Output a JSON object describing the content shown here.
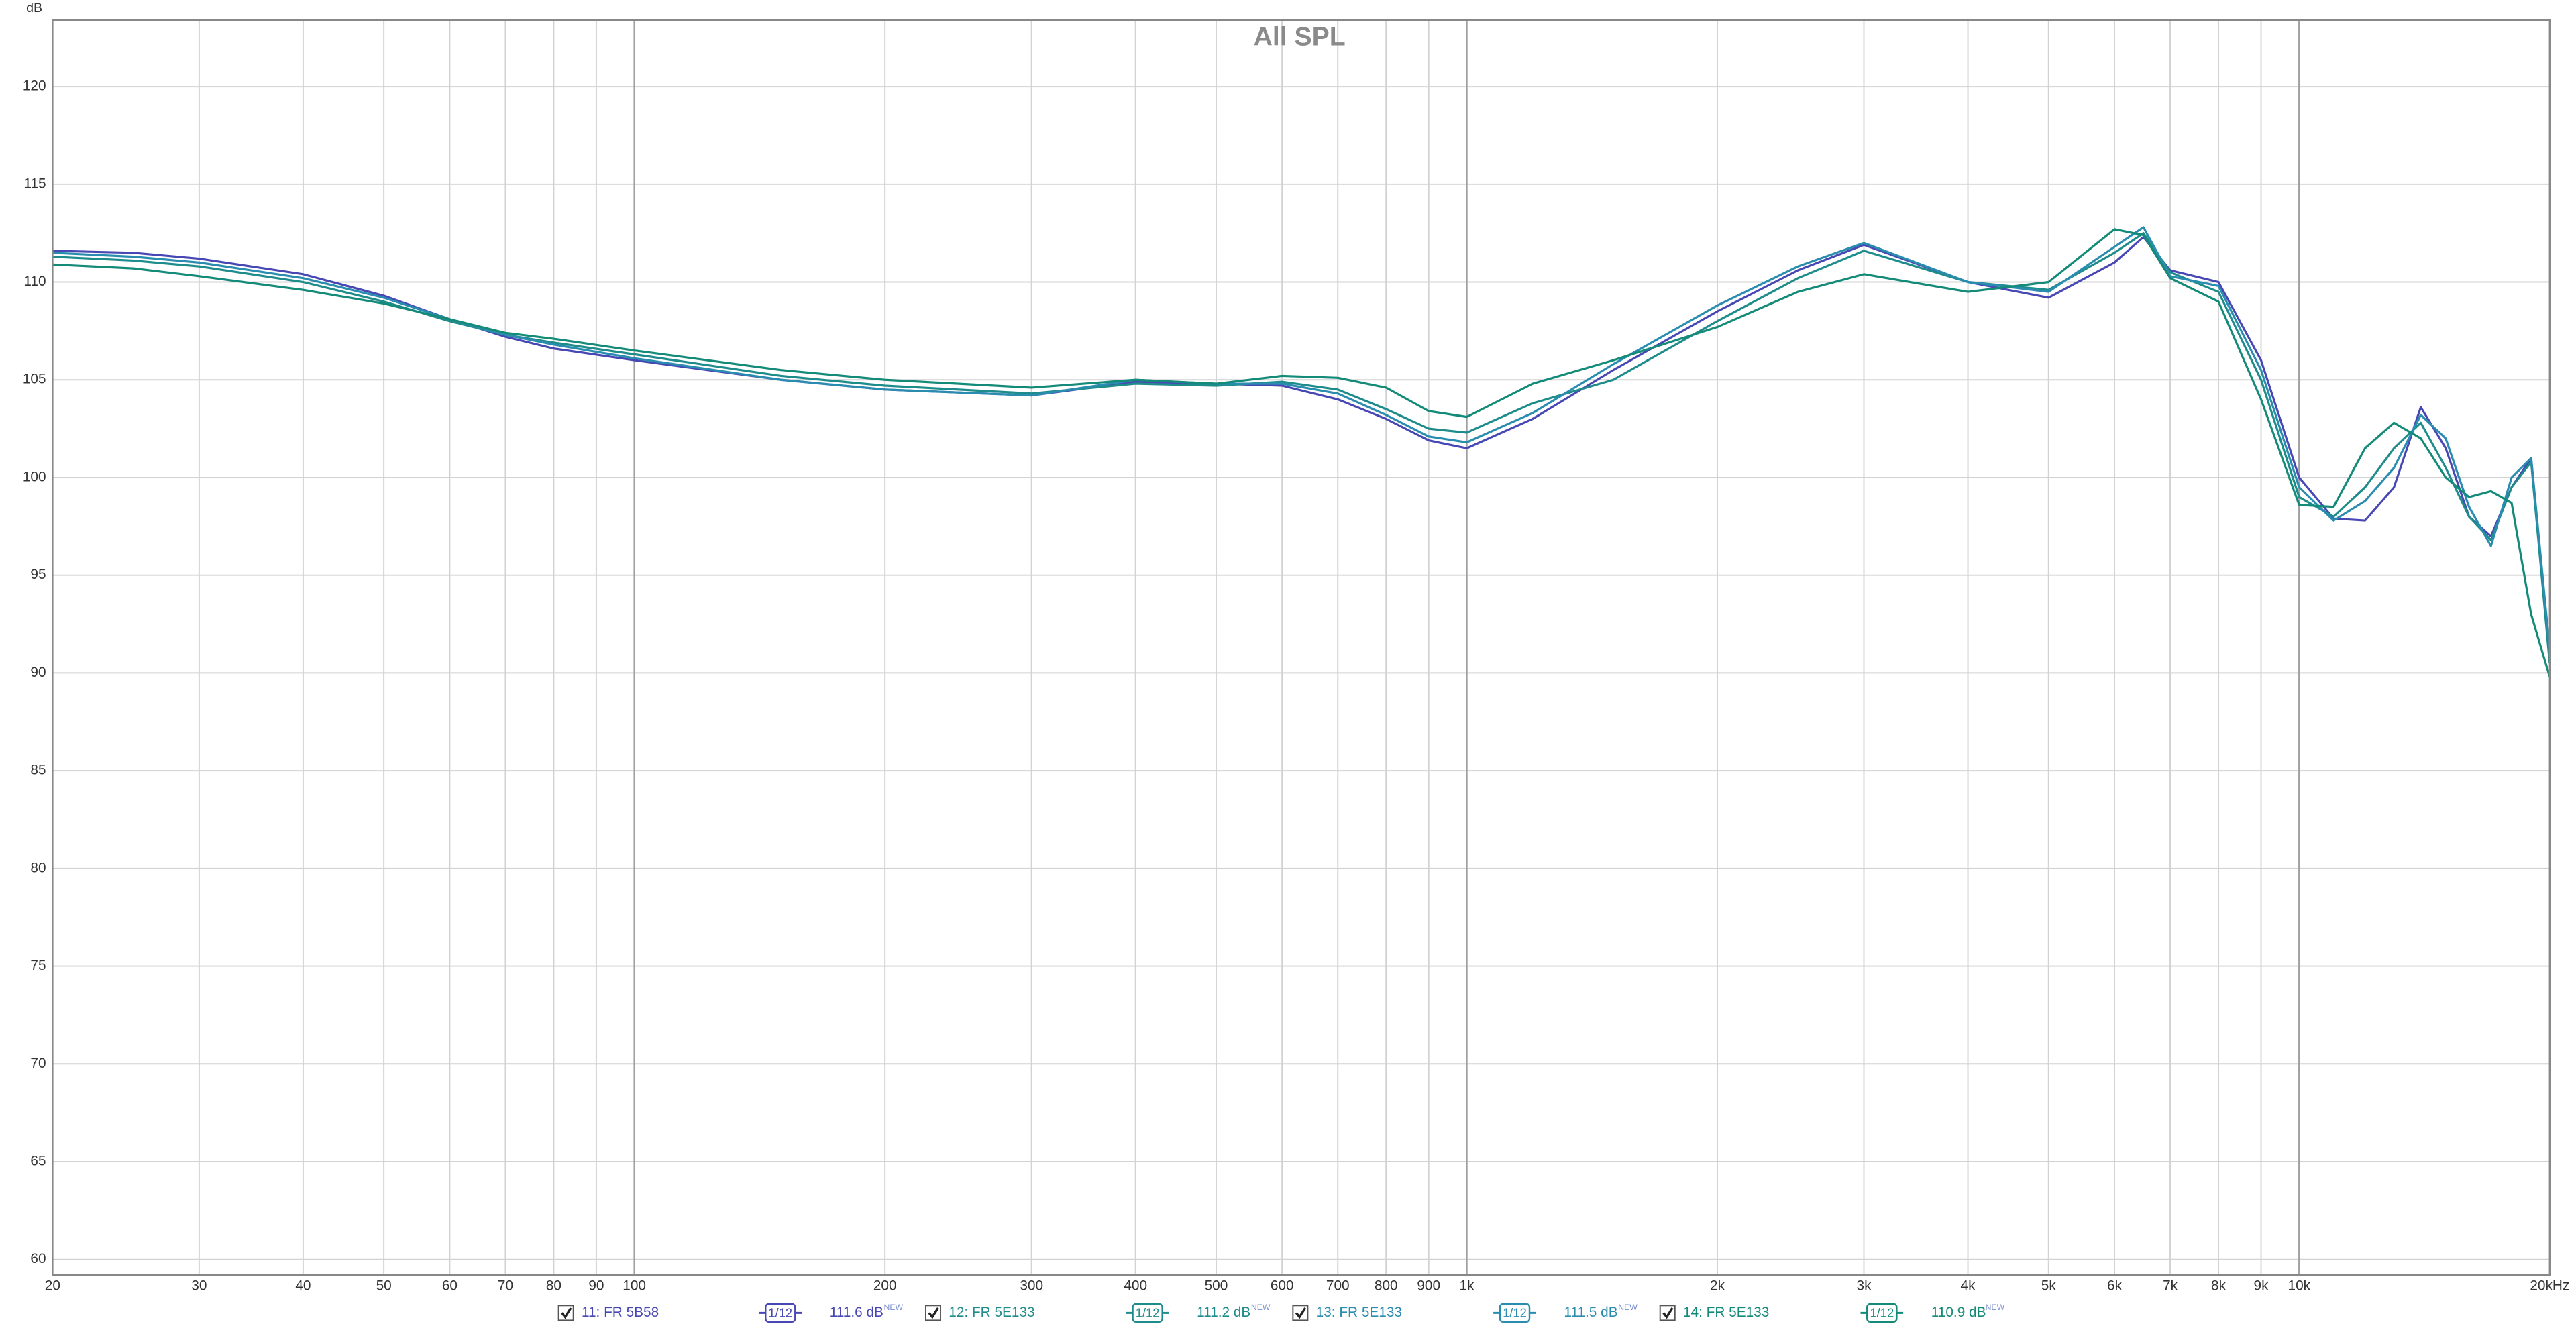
{
  "chart_data": {
    "type": "line",
    "title": "All SPL",
    "y_label": "dB",
    "xscale": "log",
    "grid": true,
    "xlim": [
      20,
      20000
    ],
    "ylim": [
      59.2,
      123.4
    ],
    "yticks": [
      60,
      65,
      70,
      75,
      80,
      85,
      90,
      95,
      100,
      105,
      110,
      115,
      120
    ],
    "xticks": [
      20,
      30,
      40,
      50,
      60,
      70,
      80,
      90,
      100,
      200,
      300,
      400,
      500,
      600,
      700,
      800,
      900,
      {
        "value": 1000,
        "label": "1k"
      },
      {
        "value": 2000,
        "label": "2k"
      },
      {
        "value": 3000,
        "label": "3k"
      },
      {
        "value": 4000,
        "label": "4k"
      },
      {
        "value": 5000,
        "label": "5k"
      },
      {
        "value": 6000,
        "label": "6k"
      },
      {
        "value": 7000,
        "label": "7k"
      },
      {
        "value": 8000,
        "label": "8k"
      },
      {
        "value": 9000,
        "label": "9k"
      },
      {
        "value": 10000,
        "label": "10k"
      },
      {
        "value": 20000,
        "label": "20kHz"
      }
    ],
    "x": [
      20,
      25,
      30,
      40,
      50,
      60,
      70,
      80,
      100,
      150,
      200,
      300,
      400,
      500,
      600,
      700,
      800,
      900,
      1000,
      1200,
      1500,
      2000,
      2500,
      3000,
      4000,
      5000,
      6000,
      6500,
      7000,
      8000,
      9000,
      10000,
      11000,
      12000,
      13000,
      14000,
      15000,
      16000,
      17000,
      18000,
      19000,
      20000
    ],
    "series": [
      {
        "name": "11: FR 5B58",
        "color": "#4848b4",
        "smoothing": "1/12",
        "level": "111.6 dB",
        "level_tag": "NEW",
        "values": [
          111.6,
          111.5,
          111.2,
          110.4,
          109.3,
          108.1,
          107.2,
          106.6,
          106.0,
          105.0,
          104.5,
          104.2,
          104.9,
          104.8,
          104.7,
          104.0,
          103.0,
          101.9,
          101.5,
          103.0,
          105.5,
          108.5,
          110.6,
          111.9,
          110.0,
          109.2,
          111.0,
          112.3,
          110.6,
          110.0,
          106.0,
          100.0,
          97.9,
          97.8,
          99.5,
          103.6,
          101.5,
          98.0,
          97.0,
          99.5,
          101.0,
          91.0
        ]
      },
      {
        "name": "12: FR 5E133",
        "color": "#1f8c8c",
        "smoothing": "1/12",
        "level": "111.2 dB",
        "level_tag": "NEW",
        "values": [
          111.3,
          111.1,
          110.8,
          110.0,
          109.0,
          108.0,
          107.3,
          106.9,
          106.3,
          105.2,
          104.7,
          104.3,
          104.8,
          104.7,
          104.9,
          104.5,
          103.5,
          102.5,
          102.3,
          103.8,
          105.0,
          108.0,
          110.2,
          111.6,
          110.0,
          109.6,
          111.5,
          112.5,
          110.5,
          109.5,
          105.0,
          99.0,
          98.0,
          99.5,
          101.5,
          102.8,
          100.5,
          98.0,
          96.8,
          99.5,
          100.8,
          90.5
        ]
      },
      {
        "name": "13: FR 5E133",
        "color": "#2a8db0",
        "smoothing": "1/12",
        "level": "111.5 dB",
        "level_tag": "NEW",
        "values": [
          111.5,
          111.3,
          111.0,
          110.2,
          109.2,
          108.1,
          107.3,
          106.8,
          106.1,
          105.0,
          104.5,
          104.2,
          105.0,
          104.8,
          104.8,
          104.3,
          103.2,
          102.1,
          101.8,
          103.3,
          105.8,
          108.8,
          110.8,
          112.0,
          110.0,
          109.5,
          111.8,
          112.8,
          110.3,
          109.8,
          105.5,
          99.5,
          97.8,
          98.8,
          100.5,
          103.2,
          102.0,
          98.5,
          96.5,
          100.0,
          101.0,
          91.2
        ]
      },
      {
        "name": "14: FR 5E133",
        "color": "#148a78",
        "smoothing": "1/12",
        "level": "110.9 dB",
        "level_tag": "NEW",
        "values": [
          110.9,
          110.7,
          110.3,
          109.6,
          108.9,
          108.1,
          107.4,
          107.1,
          106.5,
          105.5,
          105.0,
          104.6,
          105.0,
          104.8,
          105.2,
          105.1,
          104.6,
          103.4,
          103.1,
          104.8,
          106.0,
          107.7,
          109.5,
          110.4,
          109.5,
          110.0,
          112.7,
          112.4,
          110.2,
          109.0,
          104.0,
          98.6,
          98.5,
          101.5,
          102.8,
          102.0,
          100.0,
          99.0,
          99.3,
          98.7,
          93.0,
          89.8
        ]
      }
    ]
  }
}
